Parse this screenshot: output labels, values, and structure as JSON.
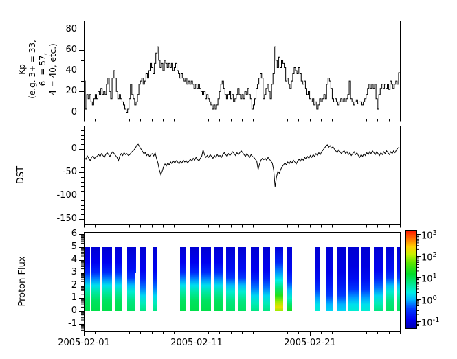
{
  "figure": {
    "bg": "#ffffff",
    "axis_color": "#000000",
    "series_color": "#000000"
  },
  "x_axis": {
    "tick_labels": [
      "2005-02-01",
      "2005-02-11",
      "2005-02-21"
    ],
    "tick_days": [
      0,
      10,
      20
    ],
    "total_days": 28,
    "minor_step_days": 1
  },
  "panels": {
    "kp": {
      "ylabel_lines": [
        "Kp",
        "(e.g. 3+ = 33,",
        "6- = 57,",
        "4 = 40, etc.)"
      ],
      "ytick_labels": [
        "0",
        "20",
        "40",
        "60",
        "80"
      ],
      "yticks": [
        0,
        20,
        40,
        60,
        80
      ],
      "yminor": [
        10,
        30,
        50,
        70
      ]
    },
    "dst": {
      "ylabel": "DST",
      "ytick_labels": [
        "0",
        "-50",
        "-100",
        "-150"
      ],
      "yticks": [
        0,
        -50,
        -100,
        -150
      ]
    },
    "flux": {
      "ylabel": "Proton Flux",
      "ytick_labels": [
        "-1",
        "0",
        "1",
        "2",
        "3",
        "4",
        "5",
        "6"
      ],
      "yticks": [
        -1,
        0,
        1,
        2,
        3,
        4,
        5,
        6
      ]
    }
  },
  "colorbar": {
    "ticks": [
      {
        "base": "10",
        "exp": "3",
        "v": 3
      },
      {
        "base": "10",
        "exp": "2",
        "v": 2
      },
      {
        "base": "10",
        "exp": "1",
        "v": 1
      },
      {
        "base": "10",
        "exp": "0",
        "v": 0
      },
      {
        "base": "10",
        "exp": "-1",
        "v": -1
      }
    ],
    "range_log10": [
      -1.3,
      3.2
    ],
    "stops": [
      [
        -1.3,
        "#0000b4"
      ],
      [
        -0.9,
        "#0000f0"
      ],
      [
        -0.4,
        "#003cff"
      ],
      [
        0,
        "#00b4ff"
      ],
      [
        0.35,
        "#00f0e6"
      ],
      [
        0.8,
        "#00e682"
      ],
      [
        1.2,
        "#00dc28"
      ],
      [
        1.7,
        "#5ae600"
      ],
      [
        2.1,
        "#c8f000"
      ],
      [
        2.45,
        "#ffd200"
      ],
      [
        2.8,
        "#ff7800"
      ],
      [
        3.2,
        "#ff1400"
      ]
    ]
  },
  "chart_data": [
    {
      "type": "line",
      "style": "step",
      "title": "Kp index",
      "x_start": "2005-02-01",
      "x_end": "2005-03-01",
      "step_hours": 3,
      "ylabel": "Kp (e.g. 3+ = 33, 6- = 57, 4 = 40, etc.)",
      "ylim": [
        -6,
        88
      ],
      "yticks": [
        0,
        20,
        40,
        60,
        80
      ],
      "values": [
        30,
        3,
        17,
        13,
        17,
        10,
        7,
        13,
        17,
        13,
        20,
        17,
        23,
        17,
        20,
        17,
        27,
        33,
        20,
        13,
        33,
        40,
        33,
        20,
        13,
        17,
        13,
        10,
        7,
        3,
        0,
        3,
        13,
        27,
        17,
        13,
        7,
        10,
        17,
        27,
        30,
        33,
        27,
        30,
        37,
        33,
        40,
        47,
        43,
        37,
        47,
        57,
        63,
        50,
        43,
        47,
        40,
        50,
        47,
        43,
        47,
        43,
        47,
        40,
        43,
        47,
        40,
        37,
        33,
        37,
        33,
        30,
        33,
        27,
        30,
        27,
        30,
        27,
        23,
        27,
        23,
        27,
        23,
        20,
        17,
        20,
        13,
        17,
        13,
        10,
        7,
        3,
        7,
        3,
        7,
        13,
        20,
        27,
        30,
        23,
        17,
        13,
        17,
        20,
        13,
        17,
        10,
        13,
        17,
        23,
        17,
        13,
        17,
        13,
        20,
        17,
        23,
        17,
        13,
        3,
        7,
        13,
        23,
        27,
        33,
        37,
        33,
        13,
        17,
        23,
        27,
        20,
        13,
        27,
        37,
        63,
        50,
        43,
        53,
        43,
        50,
        47,
        43,
        30,
        33,
        27,
        23,
        30,
        37,
        43,
        40,
        37,
        43,
        37,
        30,
        27,
        30,
        23,
        17,
        20,
        13,
        10,
        13,
        7,
        10,
        3,
        7,
        13,
        10,
        13,
        17,
        13,
        27,
        33,
        30,
        23,
        13,
        10,
        13,
        10,
        7,
        10,
        13,
        10,
        13,
        10,
        13,
        17,
        30,
        13,
        10,
        7,
        10,
        12,
        8,
        10,
        10,
        7,
        10,
        13,
        17,
        23,
        27,
        23,
        27,
        23,
        27,
        13,
        3,
        17,
        23,
        27,
        23,
        27,
        23,
        27,
        22,
        30,
        27,
        23,
        27,
        30,
        27,
        38
      ]
    },
    {
      "type": "line",
      "style": "poly",
      "title": "DST",
      "x_start": "2005-02-01",
      "x_end": "2005-03-01",
      "step_hours": 3,
      "ylabel": "DST",
      "ylim": [
        -160,
        50
      ],
      "yticks": [
        0,
        -50,
        -100,
        -150
      ],
      "values": [
        -18,
        -22,
        -15,
        -20,
        -25,
        -18,
        -15,
        -20,
        -18,
        -15,
        -12,
        -16,
        -10,
        -14,
        -18,
        -12,
        -8,
        -12,
        -16,
        -10,
        -6,
        -10,
        -14,
        -18,
        -25,
        -15,
        -10,
        -14,
        -8,
        -12,
        -10,
        -14,
        -12,
        -8,
        -5,
        -2,
        2,
        8,
        10,
        5,
        0,
        -5,
        -10,
        -8,
        -14,
        -10,
        -16,
        -12,
        -10,
        -15,
        -8,
        -20,
        -30,
        -45,
        -55,
        -48,
        -38,
        -32,
        -36,
        -30,
        -34,
        -28,
        -32,
        -26,
        -30,
        -25,
        -28,
        -32,
        -26,
        -30,
        -24,
        -28,
        -25,
        -30,
        -26,
        -22,
        -26,
        -20,
        -24,
        -18,
        -22,
        -26,
        -20,
        -16,
        -2,
        -12,
        -18,
        -14,
        -18,
        -12,
        -16,
        -20,
        -14,
        -18,
        -12,
        -16,
        -14,
        -18,
        -12,
        -8,
        -12,
        -16,
        -10,
        -14,
        -10,
        -6,
        -10,
        -14,
        -8,
        -12,
        -8,
        -4,
        -8,
        -12,
        -16,
        -10,
        -14,
        -18,
        -12,
        -16,
        -18,
        -22,
        -26,
        -44,
        -32,
        -24,
        -20,
        -23,
        -20,
        -24,
        -18,
        -22,
        -26,
        -30,
        -45,
        -81,
        -60,
        -48,
        -52,
        -44,
        -38,
        -34,
        -30,
        -34,
        -28,
        -32,
        -26,
        -30,
        -24,
        -28,
        -32,
        -26,
        -22,
        -26,
        -20,
        -24,
        -18,
        -22,
        -16,
        -20,
        -14,
        -18,
        -12,
        -16,
        -10,
        -14,
        -8,
        -12,
        -6,
        -2,
        2,
        6,
        9,
        4,
        7,
        2,
        5,
        0,
        -4,
        -8,
        -2,
        -6,
        -10,
        -6,
        -4,
        -10,
        -6,
        -12,
        -8,
        -14,
        -10,
        -6,
        -12,
        -8,
        -14,
        -18,
        -12,
        -16,
        -10,
        -14,
        -8,
        -12,
        -6,
        -10,
        -4,
        -8,
        -12,
        -6,
        -10,
        -14,
        -8,
        -12,
        -6,
        -10,
        -4,
        -8,
        -12,
        -6,
        -10,
        -4,
        -8,
        -2,
        2,
        4
      ]
    },
    {
      "type": "heatmap",
      "title": "Proton Flux",
      "ylabel": "Proton Flux",
      "ylim": [
        -1.5,
        6.2
      ],
      "yticks": [
        -1,
        0,
        1,
        2,
        3,
        4,
        5,
        6
      ],
      "color_scale": {
        "type": "log",
        "range_log10": [
          -1.3,
          3.2
        ],
        "colormap": "jet",
        "tick_labels": [
          "10^3",
          "10^2",
          "10^1",
          "10^0",
          "10^-1"
        ]
      },
      "profiles": {
        "strong": [
          [
            0,
            1.05
          ],
          [
            0.8,
            0.95
          ],
          [
            1.5,
            0.65
          ],
          [
            2,
            0.25
          ],
          [
            2.5,
            -0.15
          ],
          [
            3,
            -0.55
          ],
          [
            3.8,
            -0.9
          ],
          [
            5,
            -1.1
          ]
        ],
        "mid": [
          [
            0,
            0.95
          ],
          [
            0.8,
            0.8
          ],
          [
            1.5,
            0.45
          ],
          [
            2,
            0.05
          ],
          [
            2.6,
            -0.45
          ],
          [
            3.3,
            -0.8
          ],
          [
            5,
            -1.1
          ]
        ],
        "weak": [
          [
            0,
            0.8
          ],
          [
            0.6,
            0.55
          ],
          [
            1.2,
            0.2
          ],
          [
            1.8,
            -0.2
          ],
          [
            2.5,
            -0.6
          ],
          [
            3.2,
            -0.9
          ],
          [
            5,
            -1.1
          ]
        ],
        "blue": [
          [
            0,
            0.45
          ],
          [
            0.5,
            0.25
          ],
          [
            1,
            -0.05
          ],
          [
            1.7,
            -0.45
          ],
          [
            2.5,
            -0.8
          ],
          [
            3.5,
            -1.0
          ],
          [
            5,
            -1.1
          ]
        ],
        "bluer": [
          [
            0,
            0.2
          ],
          [
            0.5,
            0.0
          ],
          [
            1.2,
            -0.4
          ],
          [
            2,
            -0.7
          ],
          [
            3,
            -0.95
          ],
          [
            5,
            -1.1
          ]
        ],
        "hot": [
          [
            0,
            1.95
          ],
          [
            0.3,
            2.3
          ],
          [
            0.7,
            1.95
          ],
          [
            1.2,
            1.4
          ],
          [
            1.8,
            0.85
          ],
          [
            2.4,
            0.35
          ],
          [
            3,
            -0.1
          ],
          [
            3.8,
            -0.6
          ],
          [
            5,
            -1.05
          ]
        ],
        "warm": [
          [
            0,
            1.35
          ],
          [
            0.5,
            0.9
          ],
          [
            1,
            0.5
          ],
          [
            1.6,
            0.05
          ],
          [
            2.3,
            -0.45
          ],
          [
            3.2,
            -0.85
          ],
          [
            5,
            -1.1
          ]
        ],
        "top": [
          [
            3,
            -0.5
          ],
          [
            3.5,
            -0.75
          ],
          [
            5,
            -1.1
          ]
        ]
      },
      "strips": [
        {
          "d0": 0.0,
          "d1": 0.55,
          "p": "strong"
        },
        {
          "d0": 0.67,
          "d1": 1.46,
          "p": "strong"
        },
        {
          "d0": 1.64,
          "d1": 2.5,
          "p": "strong"
        },
        {
          "d0": 2.74,
          "d1": 3.41,
          "p": "strong"
        },
        {
          "d0": 3.83,
          "d1": 4.5,
          "p": "mid"
        },
        {
          "d0": 4.5,
          "d1": 4.62,
          "p": "top",
          "ymin": 3
        },
        {
          "d0": 4.99,
          "d1": 5.54,
          "p": "weak"
        },
        {
          "d0": 6.15,
          "d1": 6.45,
          "p": "weak"
        },
        {
          "d0": 8.52,
          "d1": 9.01,
          "p": "strong"
        },
        {
          "d0": 9.43,
          "d1": 10.22,
          "p": "strong"
        },
        {
          "d0": 10.41,
          "d1": 11.26,
          "p": "strong"
        },
        {
          "d0": 11.5,
          "d1": 12.36,
          "p": "strong"
        },
        {
          "d0": 12.6,
          "d1": 13.39,
          "p": "mid"
        },
        {
          "d0": 13.69,
          "d1": 14.36,
          "p": "mid"
        },
        {
          "d0": 14.79,
          "d1": 15.52,
          "p": "weak"
        },
        {
          "d0": 15.89,
          "d1": 16.5,
          "p": "weak"
        },
        {
          "d0": 16.92,
          "d1": 17.65,
          "p": "hot"
        },
        {
          "d0": 18.01,
          "d1": 18.44,
          "p": "warm"
        },
        {
          "d0": 20.45,
          "d1": 20.94,
          "p": "blue"
        },
        {
          "d0": 21.49,
          "d1": 22.09,
          "p": "bluer"
        },
        {
          "d0": 22.4,
          "d1": 23.19,
          "p": "bluer"
        },
        {
          "d0": 23.43,
          "d1": 24.35,
          "p": "blue"
        },
        {
          "d0": 24.59,
          "d1": 25.38,
          "p": "blue"
        },
        {
          "d0": 25.68,
          "d1": 26.47,
          "p": "weak"
        },
        {
          "d0": 26.78,
          "d1": 27.45,
          "p": "mid"
        },
        {
          "d0": 27.75,
          "d1": 28.0,
          "p": "mid"
        }
      ]
    }
  ]
}
